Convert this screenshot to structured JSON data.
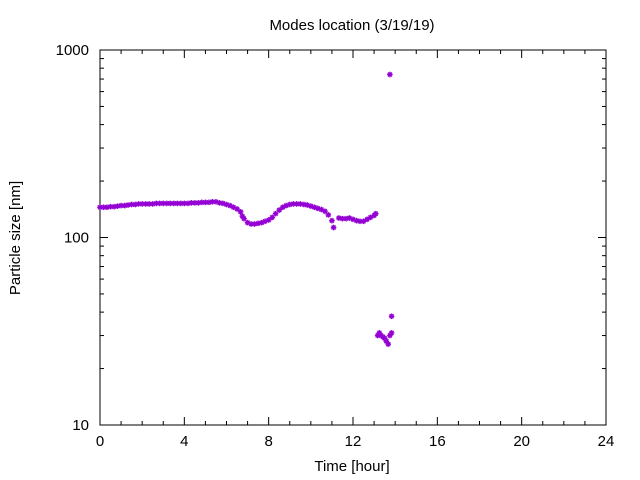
{
  "chart_data": {
    "type": "scatter",
    "title": "Modes location (3/19/19)",
    "xlabel": "Time [hour]",
    "ylabel": "Particle size [nm]",
    "xlim": [
      0,
      24
    ],
    "ylim": [
      10,
      1000
    ],
    "yscale": "log",
    "x_ticks": [
      0,
      4,
      8,
      12,
      16,
      20,
      24
    ],
    "x_tick_labels": [
      "0",
      "4",
      "8",
      "12",
      "16",
      "20",
      "24"
    ],
    "y_ticks": [
      10,
      100,
      1000
    ],
    "y_tick_labels": [
      "10",
      "100",
      "1000"
    ],
    "grid": false,
    "legend": "none",
    "marker_color": "#9400d3",
    "series": [
      {
        "points": [
          [
            0.0,
            145
          ],
          [
            0.17,
            145
          ],
          [
            0.33,
            145
          ],
          [
            0.5,
            146
          ],
          [
            0.67,
            146
          ],
          [
            0.83,
            147
          ],
          [
            1.0,
            148
          ],
          [
            1.17,
            148
          ],
          [
            1.33,
            149
          ],
          [
            1.5,
            150
          ],
          [
            1.67,
            150
          ],
          [
            1.83,
            151
          ],
          [
            2.0,
            151
          ],
          [
            2.17,
            151
          ],
          [
            2.33,
            151
          ],
          [
            2.5,
            151
          ],
          [
            2.67,
            152
          ],
          [
            2.83,
            152
          ],
          [
            3.0,
            152
          ],
          [
            3.17,
            152
          ],
          [
            3.33,
            152
          ],
          [
            3.5,
            152
          ],
          [
            3.67,
            152
          ],
          [
            3.83,
            152
          ],
          [
            4.0,
            152
          ],
          [
            4.17,
            152
          ],
          [
            4.33,
            153
          ],
          [
            4.5,
            153
          ],
          [
            4.67,
            153
          ],
          [
            4.83,
            154
          ],
          [
            5.0,
            154
          ],
          [
            5.17,
            154
          ],
          [
            5.33,
            155
          ],
          [
            5.5,
            155
          ],
          [
            5.67,
            153
          ],
          [
            5.83,
            152
          ],
          [
            6.0,
            150
          ],
          [
            6.17,
            148
          ],
          [
            6.33,
            145
          ],
          [
            6.5,
            142
          ],
          [
            6.67,
            137
          ],
          [
            6.75,
            130
          ],
          [
            6.83,
            126
          ],
          [
            7.0,
            120
          ],
          [
            7.17,
            118
          ],
          [
            7.33,
            118
          ],
          [
            7.5,
            119
          ],
          [
            7.67,
            120
          ],
          [
            7.83,
            122
          ],
          [
            8.0,
            124
          ],
          [
            8.17,
            128
          ],
          [
            8.33,
            134
          ],
          [
            8.5,
            140
          ],
          [
            8.67,
            145
          ],
          [
            8.83,
            148
          ],
          [
            9.0,
            150
          ],
          [
            9.17,
            151
          ],
          [
            9.33,
            151
          ],
          [
            9.5,
            151
          ],
          [
            9.67,
            150
          ],
          [
            9.83,
            149
          ],
          [
            10.0,
            147
          ],
          [
            10.17,
            145
          ],
          [
            10.33,
            143
          ],
          [
            10.5,
            141
          ],
          [
            10.67,
            138
          ],
          [
            10.83,
            132
          ],
          [
            11.0,
            123
          ],
          [
            11.08,
            113
          ],
          [
            11.33,
            127
          ],
          [
            11.5,
            126
          ],
          [
            11.67,
            126
          ],
          [
            11.83,
            127
          ],
          [
            12.0,
            125
          ],
          [
            12.17,
            123
          ],
          [
            12.33,
            122
          ],
          [
            12.5,
            122
          ],
          [
            12.67,
            125
          ],
          [
            12.83,
            128
          ],
          [
            13.0,
            131
          ],
          [
            13.08,
            134
          ],
          [
            13.17,
            30
          ],
          [
            13.25,
            31
          ],
          [
            13.33,
            30
          ],
          [
            13.42,
            29.5
          ],
          [
            13.5,
            29
          ],
          [
            13.58,
            28
          ],
          [
            13.67,
            27
          ],
          [
            13.75,
            30
          ],
          [
            13.83,
            31
          ],
          [
            13.83,
            38
          ],
          [
            13.75,
            740
          ]
        ]
      }
    ]
  }
}
